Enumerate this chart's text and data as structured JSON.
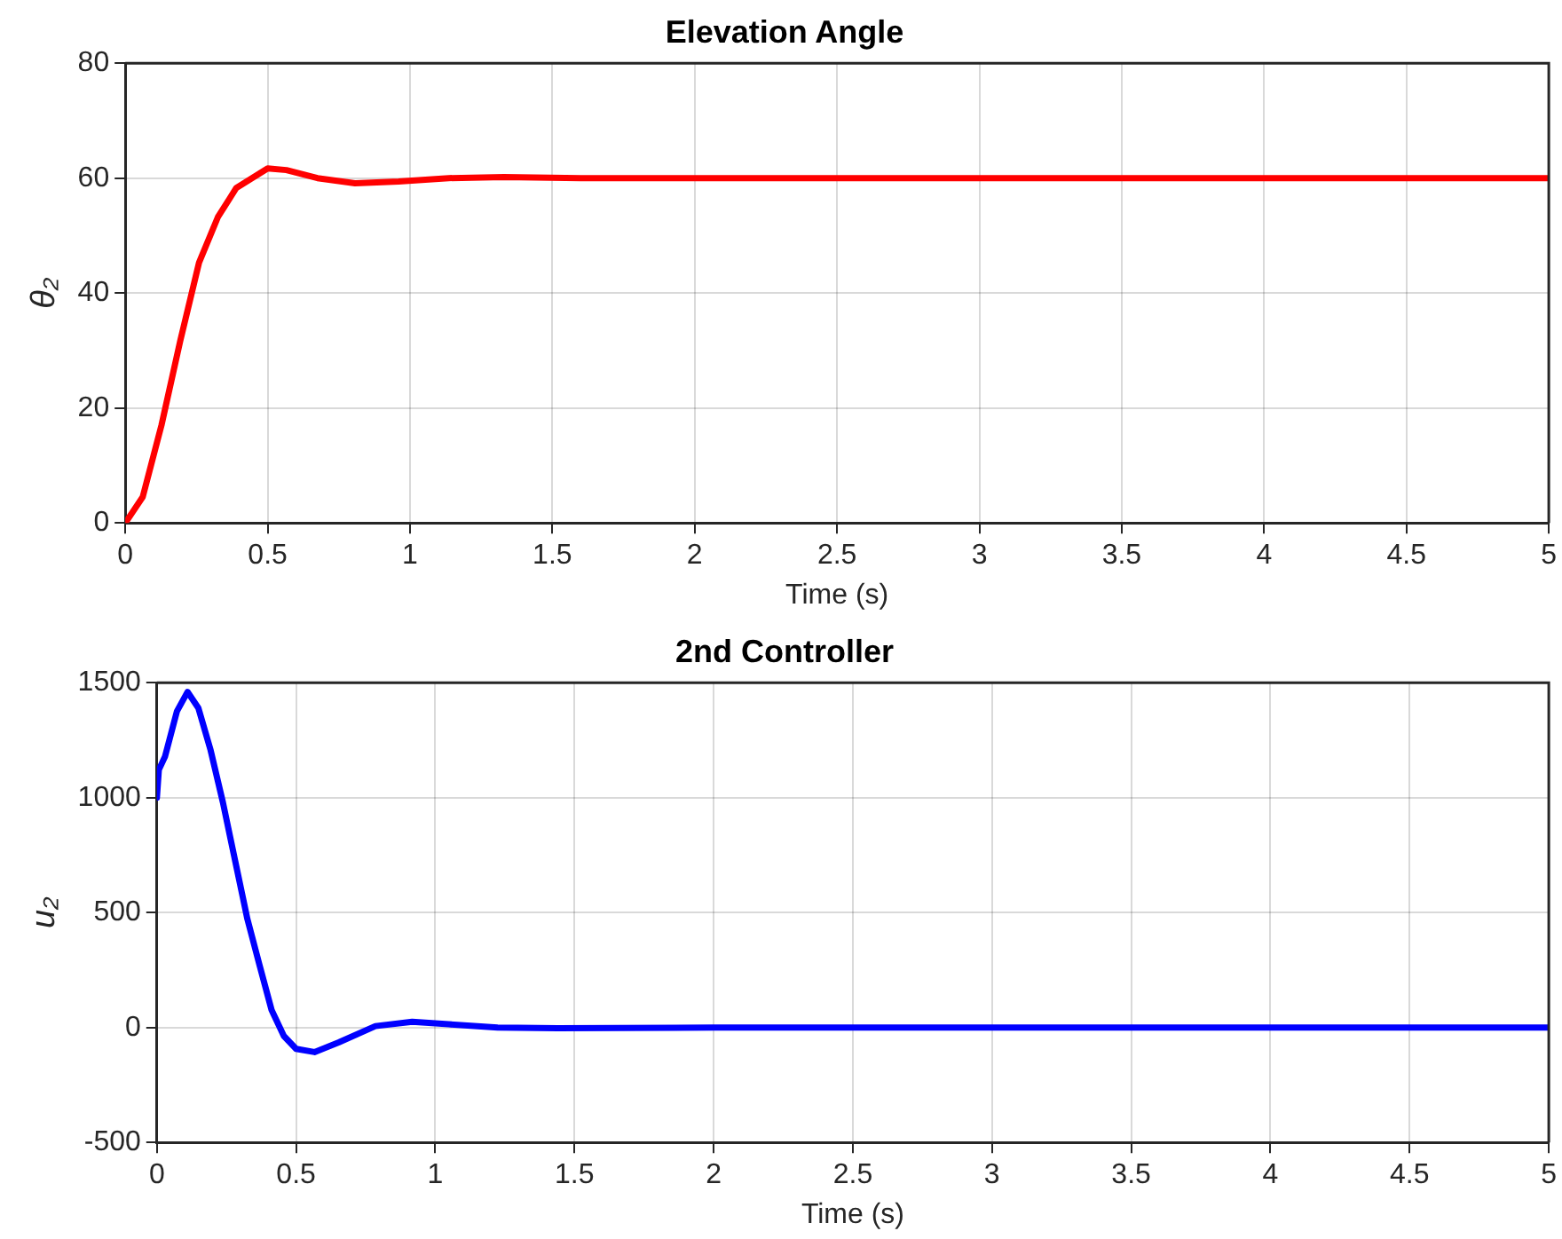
{
  "chart_data": [
    {
      "type": "line",
      "title": "Elevation Angle",
      "xlabel": "Time (s)",
      "ylabel": "θ₂",
      "grid": true,
      "legend": false,
      "marker": "none",
      "line_style": "solid",
      "xlim": [
        0,
        5
      ],
      "xticks": [
        0,
        0.5,
        1,
        1.5,
        2,
        2.5,
        3,
        3.5,
        4,
        4.5,
        5
      ],
      "ylim": [
        0,
        80
      ],
      "yticks": [
        0,
        20,
        40,
        60,
        80
      ],
      "series": [
        {
          "color": "#ff0000",
          "x": [
            0,
            0.061,
            0.127,
            0.193,
            0.259,
            0.325,
            0.39,
            0.5,
            0.566,
            0.675,
            0.807,
            0.96,
            1.136,
            1.33,
            1.6,
            2,
            3,
            4,
            5
          ],
          "values": [
            0,
            4.5,
            17,
            31.7,
            45.3,
            53.2,
            58.3,
            61.7,
            61.4,
            60,
            59.1,
            59.4,
            60,
            60.2,
            60,
            60,
            60,
            60,
            60
          ]
        }
      ]
    },
    {
      "type": "line",
      "title": "2nd Controller",
      "xlabel": "Time (s)",
      "ylabel": "u₂",
      "grid": true,
      "legend": false,
      "marker": "none",
      "line_style": "solid",
      "xlim": [
        0,
        5
      ],
      "xticks": [
        0,
        0.5,
        1,
        1.5,
        2,
        2.5,
        3,
        3.5,
        4,
        4.5,
        5
      ],
      "ylim": [
        -500,
        1500
      ],
      "yticks": [
        -500,
        0,
        500,
        1000,
        1500
      ],
      "series": [
        {
          "color": "#0000ff",
          "x": [
            0,
            0.007,
            0.029,
            0.072,
            0.11,
            0.149,
            0.193,
            0.237,
            0.281,
            0.325,
            0.368,
            0.412,
            0.456,
            0.5,
            0.566,
            0.653,
            0.785,
            0.917,
            1.048,
            1.224,
            1.44,
            2,
            3,
            4,
            5
          ],
          "values": [
            1000,
            1121,
            1178,
            1376,
            1460,
            1390,
            1206,
            980,
            726,
            472,
            274,
            76,
            -37,
            -93,
            -107,
            -65,
            6,
            25,
            14,
            0,
            -3,
            0,
            0,
            0,
            0
          ]
        }
      ]
    }
  ]
}
